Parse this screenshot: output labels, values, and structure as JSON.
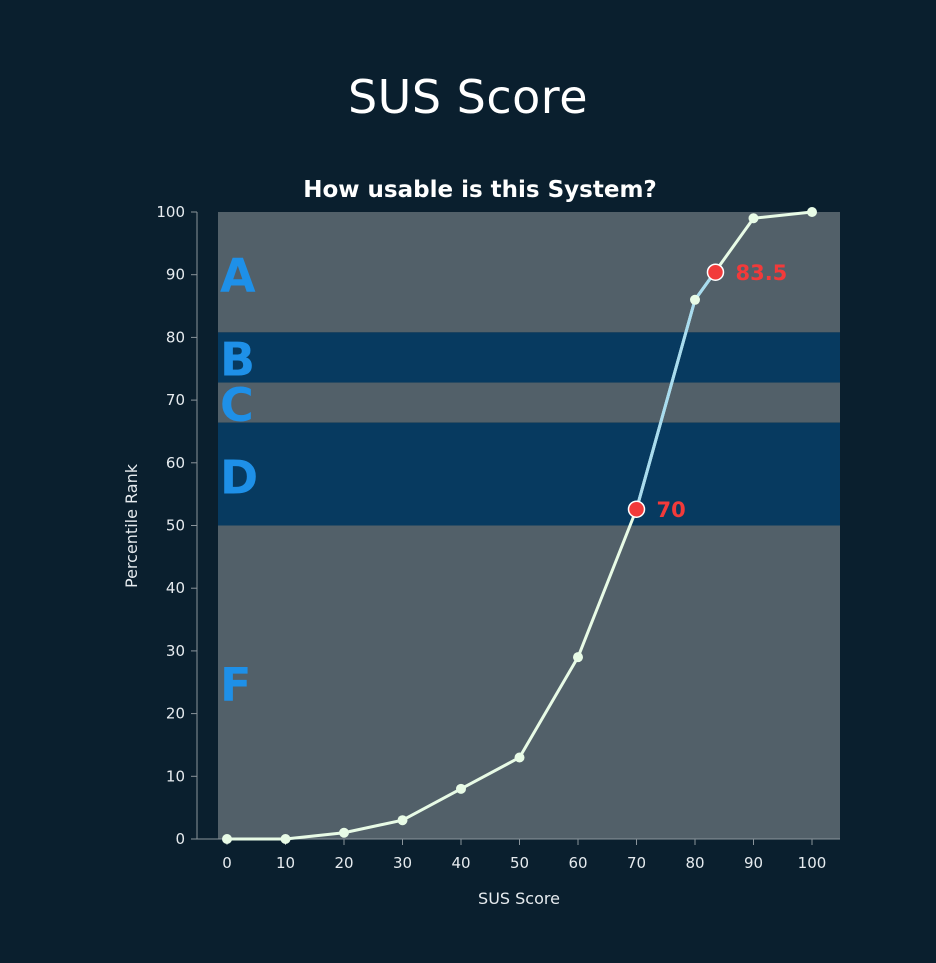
{
  "page": {
    "title": "SUS Score"
  },
  "colors": {
    "background": "#0a1f2e",
    "band_gray": "#526069",
    "band_blue": "#073a60",
    "line": "#e8fbe6",
    "line_highlight": "#a8dcef",
    "highlight": "#f23a3a",
    "grade_letter": "#1e90e8"
  },
  "chart_data": {
    "type": "line",
    "title": "How usable is this System?",
    "xlabel": "SUS Score",
    "ylabel": "Percentile Rank",
    "xlim": [
      0,
      100
    ],
    "ylim": [
      0,
      100
    ],
    "x_ticks": [
      "0",
      "10",
      "20",
      "30",
      "40",
      "50",
      "60",
      "70",
      "80",
      "90",
      "100"
    ],
    "y_ticks": [
      "0",
      "10",
      "20",
      "30",
      "40",
      "50",
      "60",
      "70",
      "80",
      "90",
      "100"
    ],
    "series": [
      {
        "x": [
          0,
          10,
          20,
          30,
          40,
          50,
          60,
          70,
          80,
          90,
          100
        ],
        "y": [
          0,
          0,
          1,
          3,
          8,
          13,
          29,
          52.6,
          86,
          99,
          100
        ]
      }
    ],
    "highlighted_range": [
      70,
      83.5
    ],
    "highlights": [
      {
        "x": 70,
        "y": 52.6,
        "label": "70"
      },
      {
        "x": 83.5,
        "y": 90.4,
        "label": "83.5"
      }
    ],
    "grade_bands": [
      {
        "grade": "A",
        "from": 80.8,
        "to": 100,
        "label_y": 90,
        "color": "#526069"
      },
      {
        "grade": "B",
        "from": 72.8,
        "to": 80.8,
        "label_y": 76.6,
        "color": "#073a60"
      },
      {
        "grade": "C",
        "from": 66.4,
        "to": 72.8,
        "label_y": 69.4,
        "color": "#526069"
      },
      {
        "grade": "D",
        "from": 50,
        "to": 66.4,
        "label_y": 57.8,
        "color": "#073a60"
      },
      {
        "grade": "F",
        "from": 0,
        "to": 50,
        "label_y": 24.7,
        "color": "#526069"
      }
    ],
    "grid": false,
    "legend": "none"
  }
}
